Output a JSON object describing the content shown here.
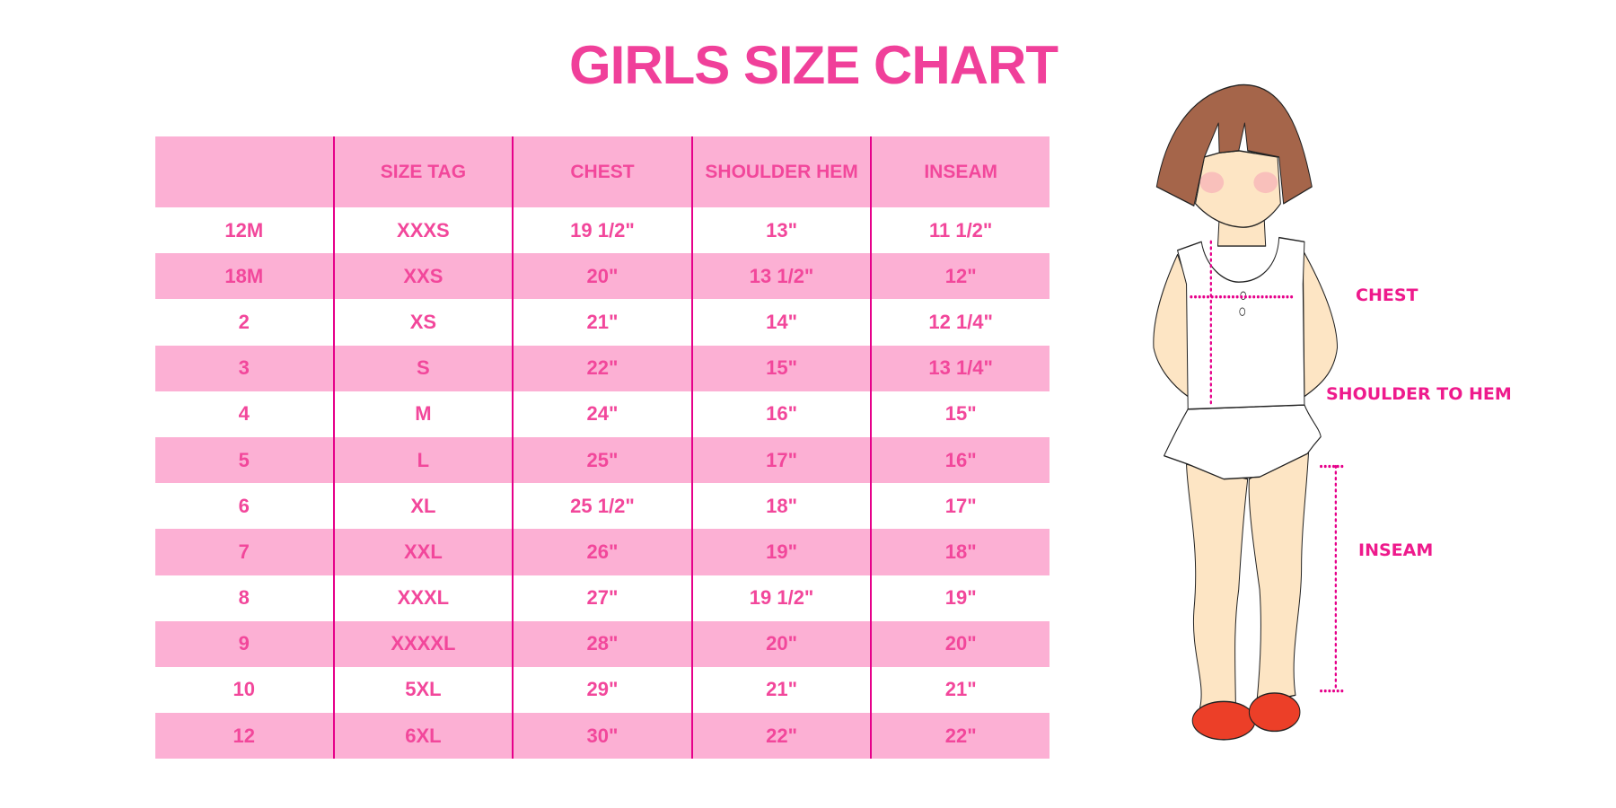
{
  "title": "GIRLS SIZE CHART",
  "table": {
    "headers": [
      "",
      "SIZE TAG",
      "CHEST",
      "SHOULDER HEM",
      "INSEAM"
    ],
    "rows": [
      [
        "12M",
        "XXXS",
        "19 1/2\"",
        "13\"",
        "11 1/2\""
      ],
      [
        "18M",
        "XXS",
        "20\"",
        "13 1/2\"",
        "12\""
      ],
      [
        "2",
        "XS",
        "21\"",
        "14\"",
        "12 1/4\""
      ],
      [
        "3",
        "S",
        "22\"",
        "15\"",
        "13 1/4\""
      ],
      [
        "4",
        "M",
        "24\"",
        "16\"",
        "15\""
      ],
      [
        "5",
        "L",
        "25\"",
        "17\"",
        "16\""
      ],
      [
        "6",
        "XL",
        "25 1/2\"",
        "18\"",
        "17\""
      ],
      [
        "7",
        "XXL",
        "26\"",
        "19\"",
        "18\""
      ],
      [
        "8",
        "XXXL",
        "27\"",
        "19 1/2\"",
        "19\""
      ],
      [
        "9",
        "XXXXL",
        "28\"",
        "20\"",
        "20\""
      ],
      [
        "10",
        "5XL",
        "29\"",
        "21\"",
        "21\""
      ],
      [
        "12",
        "6XL",
        "30\"",
        "22\"",
        "22\""
      ]
    ]
  },
  "figure": {
    "labels": {
      "chest": "CHEST",
      "shoulder_to_hem": "SHOULDER TO HEM",
      "inseam": "INSEAM"
    }
  },
  "colors": {
    "accent": "#f0409a",
    "row_pink": "#fcb0d4",
    "divider": "#e6008a"
  }
}
